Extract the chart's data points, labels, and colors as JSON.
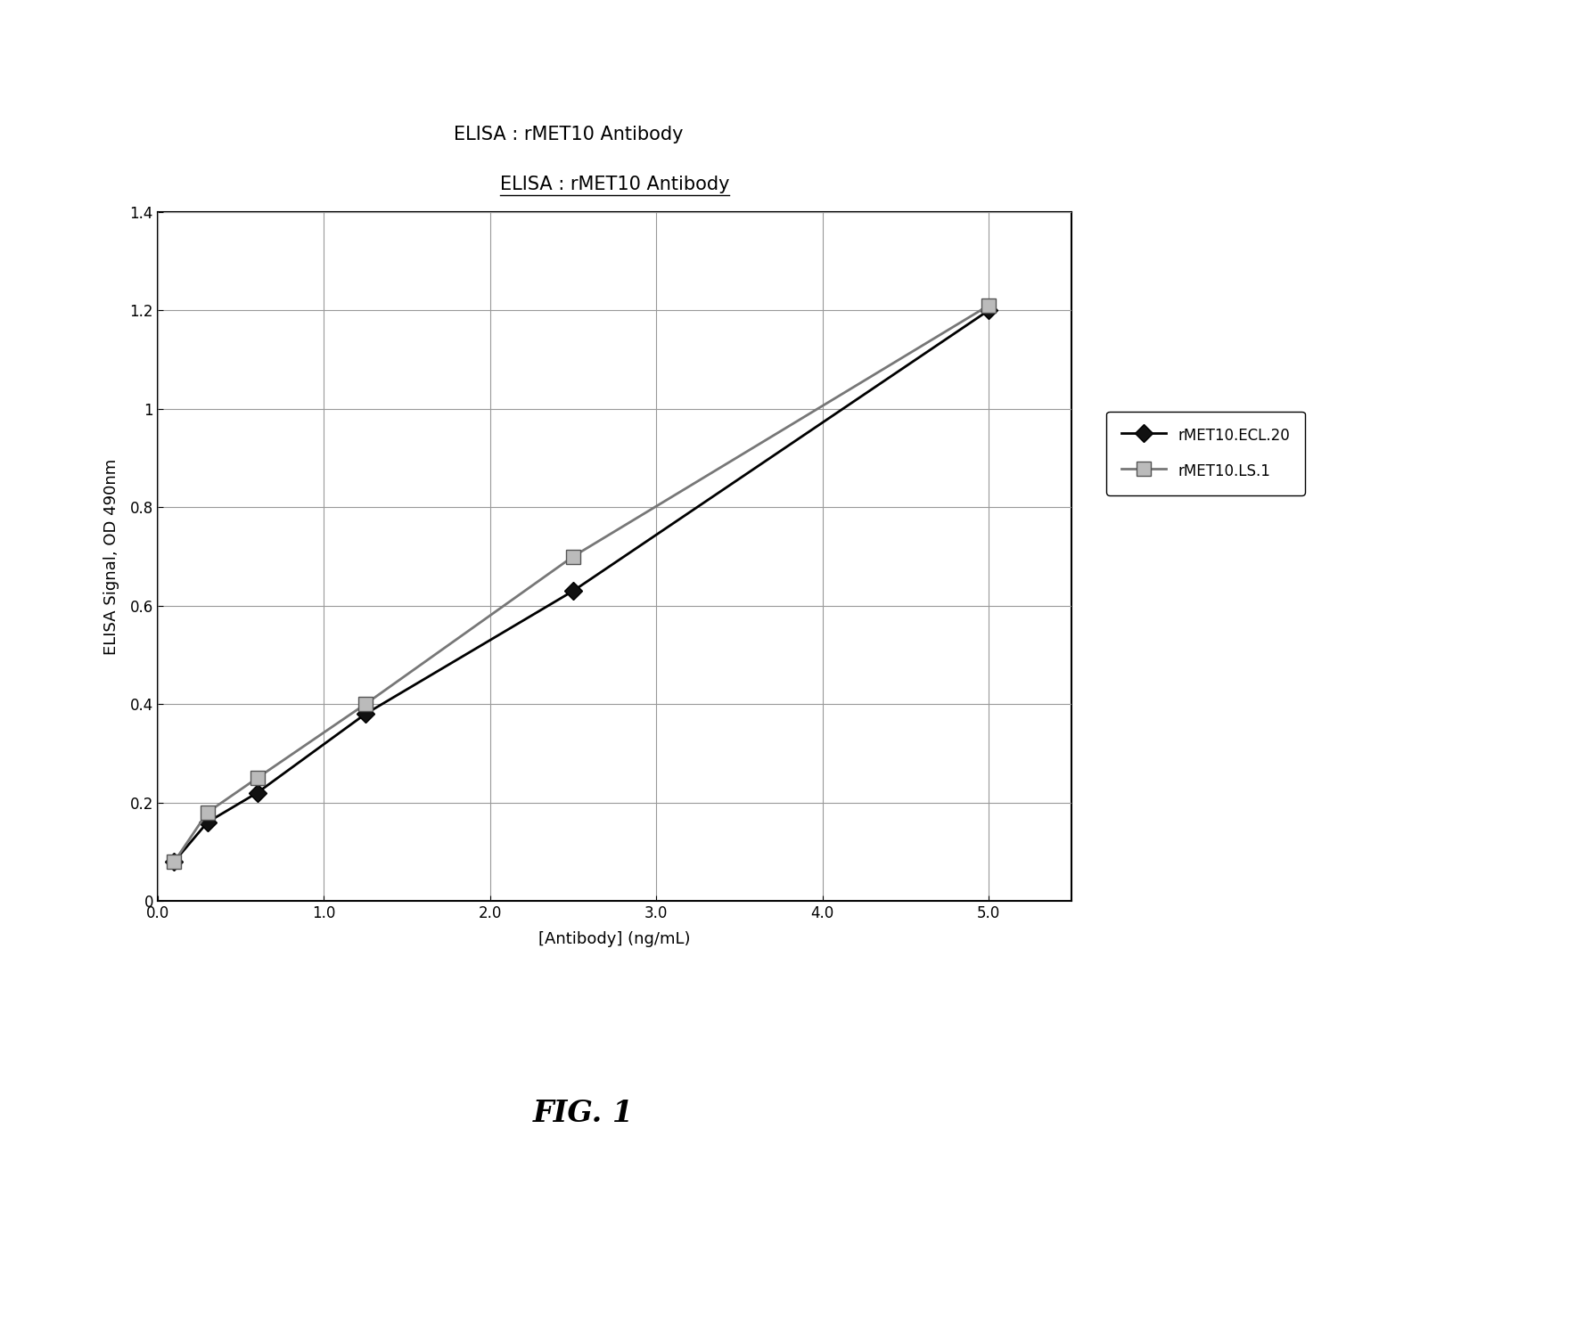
{
  "title": "ELISA : rMET10 Antibody",
  "xlabel": "[Antibody] (ng/mL)",
  "ylabel": "ELISA Signal, OD 490nm",
  "xlim": [
    0.0,
    5.5
  ],
  "ylim": [
    0,
    1.4
  ],
  "xticks": [
    0.0,
    1.0,
    2.0,
    3.0,
    4.0,
    5.0
  ],
  "yticks": [
    0,
    0.2,
    0.4,
    0.6,
    0.8,
    1.0,
    1.2,
    1.4
  ],
  "ytick_labels": [
    "0",
    "0.2",
    "0.4",
    "0.6",
    "0.8",
    "1",
    "1.2",
    "1.4"
  ],
  "xtick_labels": [
    "0.0",
    "1.0",
    "2.0",
    "3.0",
    "4.0",
    "5.0"
  ],
  "series": [
    {
      "label": "rMET10.ECL.20",
      "x": [
        0.1,
        0.3,
        0.6,
        1.25,
        2.5,
        5.0
      ],
      "y": [
        0.08,
        0.16,
        0.22,
        0.38,
        0.63,
        1.2
      ],
      "color": "#000000",
      "linestyle": "-",
      "linewidth": 2.0,
      "marker": "D",
      "markersize": 10,
      "markerfacecolor": "#111111",
      "markeredgecolor": "#000000"
    },
    {
      "label": "rMET10.LS.1",
      "x": [
        0.1,
        0.3,
        0.6,
        1.25,
        2.5,
        5.0
      ],
      "y": [
        0.08,
        0.18,
        0.25,
        0.4,
        0.7,
        1.21
      ],
      "color": "#777777",
      "linestyle": "-",
      "linewidth": 2.0,
      "marker": "s",
      "markersize": 11,
      "markerfacecolor": "#bbbbbb",
      "markeredgecolor": "#555555"
    }
  ],
  "fig_caption": "FIG. 1",
  "background_color": "#ffffff",
  "plot_bg_color": "#ffffff",
  "title_fontsize": 15,
  "label_fontsize": 13,
  "tick_fontsize": 12,
  "legend_fontsize": 12
}
